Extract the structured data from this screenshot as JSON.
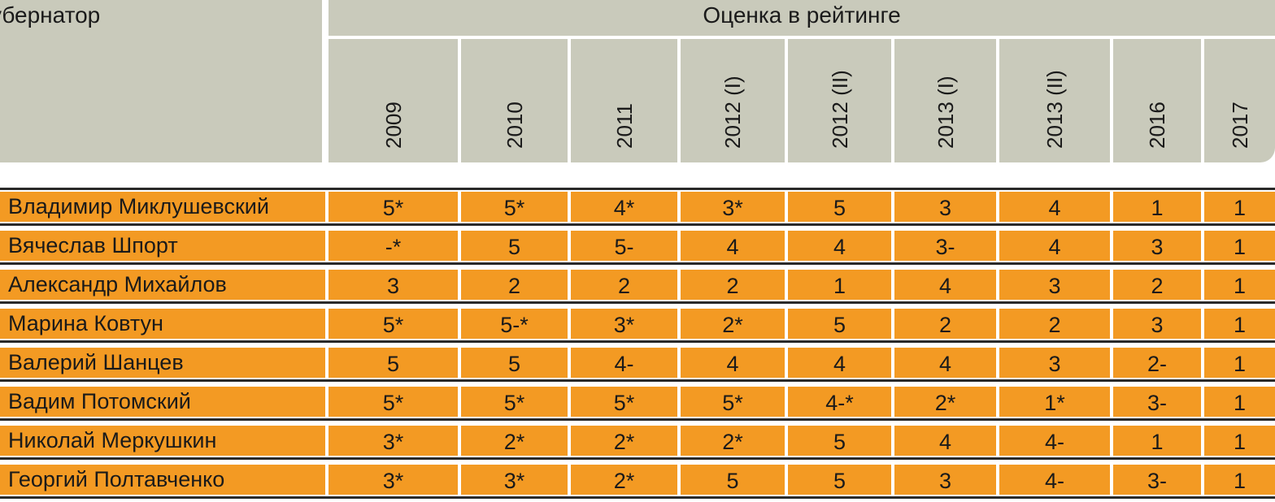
{
  "header": {
    "governor_label": "убернатор",
    "rating_label": "Оценка в рейтинге",
    "years": [
      "2009",
      "2010",
      "2011",
      "2012 (I)",
      "2012 (II)",
      "2013 (I)",
      "2013 (II)",
      "2016",
      "2017"
    ]
  },
  "rows": [
    {
      "name": "Владимир Миклушевский",
      "values": [
        "5*",
        "5*",
        "4*",
        "3*",
        "5",
        "3",
        "4",
        "1",
        "1"
      ]
    },
    {
      "name": "Вячеслав Шпорт",
      "values": [
        "-*",
        "5",
        "5-",
        "4",
        "4",
        "3-",
        "4",
        "3",
        "1"
      ]
    },
    {
      "name": "Александр Михайлов",
      "values": [
        "3",
        "2",
        "2",
        "2",
        "1",
        "4",
        "3",
        "2",
        "1"
      ]
    },
    {
      "name": "Марина Ковтун",
      "values": [
        "5*",
        "5-*",
        "3*",
        "2*",
        "5",
        "2",
        "2",
        "3",
        "1"
      ]
    },
    {
      "name": "Валерий Шанцев",
      "values": [
        "5",
        "5",
        "4-",
        "4",
        "4",
        "4",
        "3",
        "2-",
        "1"
      ]
    },
    {
      "name": "Вадим Потомский",
      "values": [
        "5*",
        "5*",
        "5*",
        "5*",
        "4-*",
        "2*",
        "1*",
        "3-",
        "1"
      ]
    },
    {
      "name": "Николай Меркушкин",
      "values": [
        "3*",
        "2*",
        "2*",
        "2*",
        "5",
        "4",
        "4-",
        "1",
        "1"
      ]
    },
    {
      "name": "Георгий Полтавченко",
      "values": [
        "3*",
        "3*",
        "2*",
        "5",
        "5",
        "3",
        "4-",
        "3-",
        "1"
      ]
    }
  ],
  "colors": {
    "header": "#c9cabb",
    "cell": "#f39a23",
    "rule": "#2a2a2a"
  }
}
